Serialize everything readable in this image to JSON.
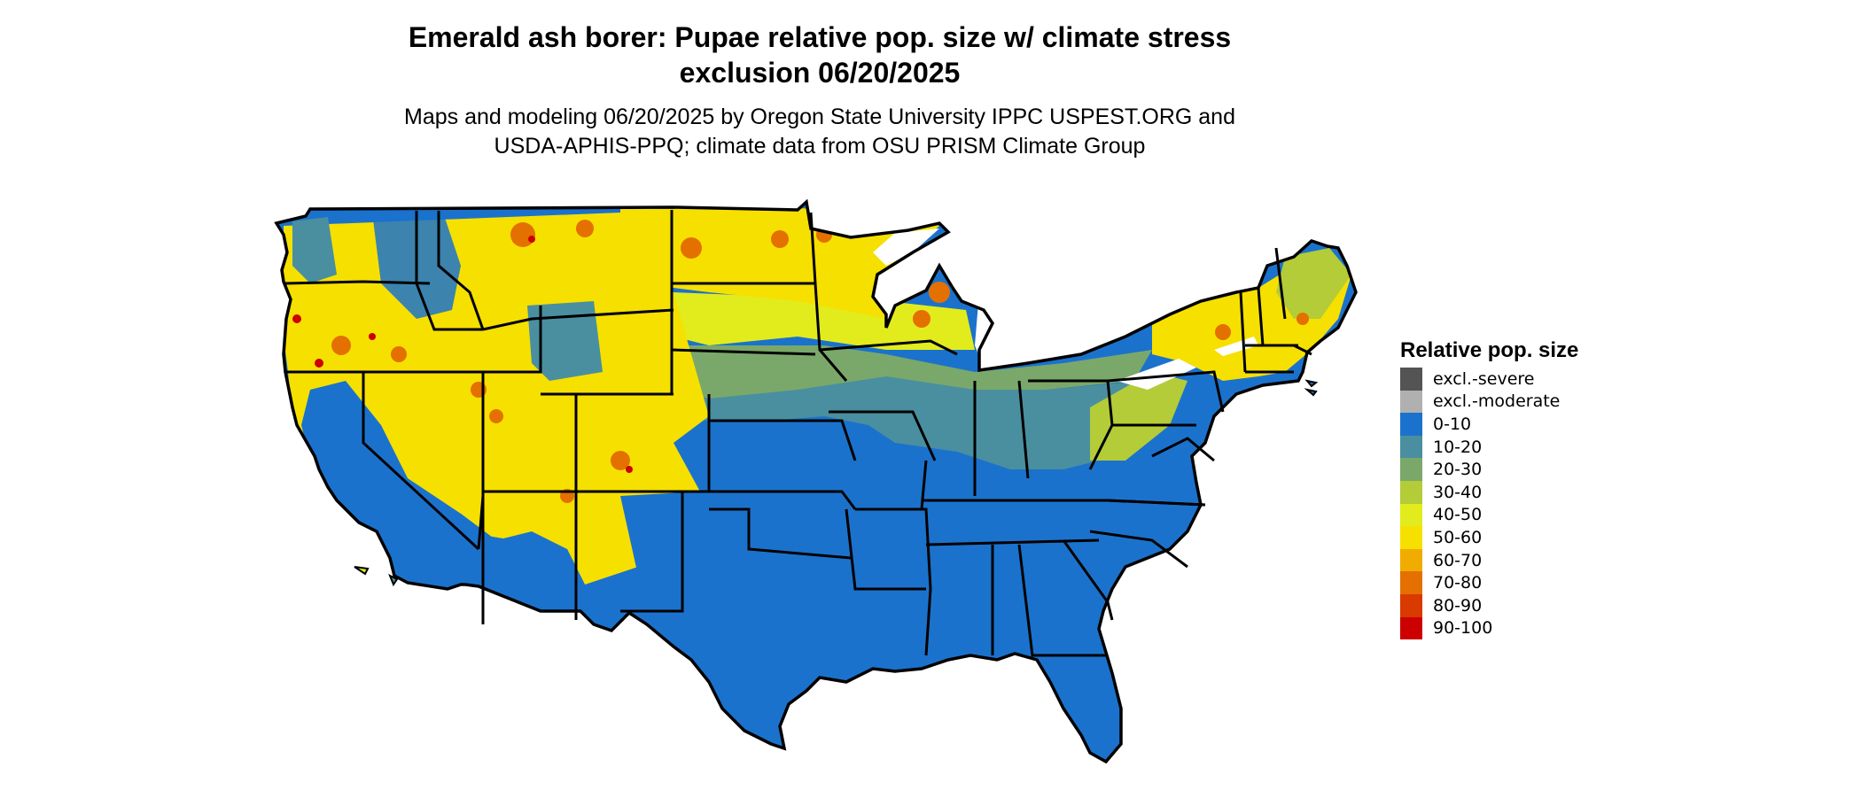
{
  "title": "Emerald ash borer: Pupae relative pop. size w/ climate stress\nexclusion 06/20/2025",
  "subtitle": "Maps and modeling 06/20/2025 by Oregon State University IPPC USPEST.ORG and\nUSDA-APHIS-PPQ; climate data from OSU PRISM Climate Group",
  "legend": {
    "title": "Relative pop. size",
    "items": [
      {
        "label": "excl.-severe",
        "color": "#545454"
      },
      {
        "label": "excl.-moderate",
        "color": "#b0b0b0"
      },
      {
        "label": "0-10",
        "color": "#1b72cc"
      },
      {
        "label": "10-20",
        "color": "#4a8fa0"
      },
      {
        "label": "20-30",
        "color": "#7aa86a"
      },
      {
        "label": "30-40",
        "color": "#b3cc38"
      },
      {
        "label": "40-50",
        "color": "#e2ec1c"
      },
      {
        "label": "50-60",
        "color": "#f6e000"
      },
      {
        "label": "60-70",
        "color": "#f0ac00"
      },
      {
        "label": "70-80",
        "color": "#e47000"
      },
      {
        "label": "80-90",
        "color": "#d83a00"
      },
      {
        "label": "90-100",
        "color": "#cc0000"
      }
    ]
  },
  "map": {
    "region": "Contiguous United States",
    "border_color": "#000000",
    "colors": {
      "south_low": "#1b72cc",
      "transition_band": "#4a8fa0",
      "midwest_band": "#7aa86a",
      "west_mountains": "#f6e000",
      "lake_water": "#ffffff"
    }
  }
}
